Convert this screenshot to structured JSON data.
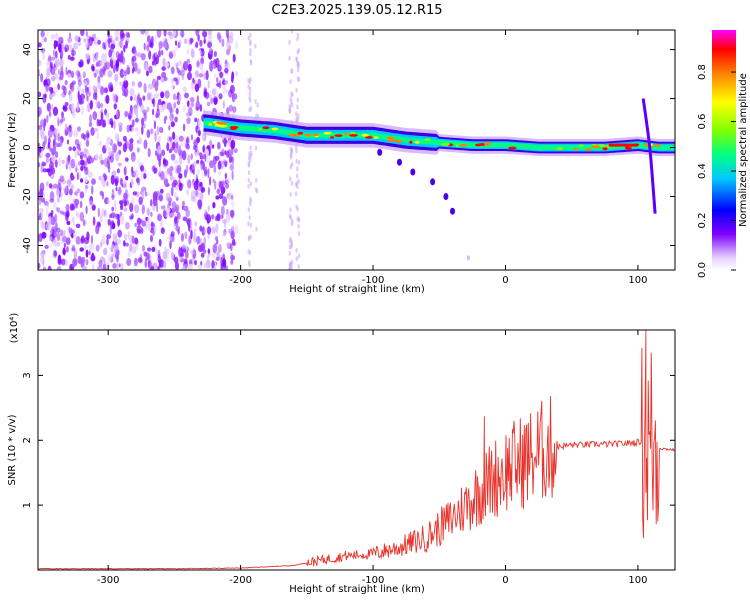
{
  "title": "C2E3.2025.139.05.12.R15",
  "chart_data": [
    {
      "type": "heatmap",
      "xlabel": "Height of straight line (km)",
      "ylabel": "Frequency (Hz)",
      "xlim": [
        -353,
        128
      ],
      "ylim": [
        -50,
        48
      ],
      "x_ticks": [
        "-300",
        "-200",
        "-100",
        "0",
        "100"
      ],
      "y_ticks": [
        "40",
        "20",
        "0",
        "-20",
        "-40"
      ],
      "colorbar_label": "Normalized spectral amplitude",
      "colorbar_ticks": [
        "0.0",
        "0.2",
        "0.4",
        "0.6",
        "0.8"
      ],
      "colorbar_range": [
        0,
        0.97
      ],
      "colormap": [
        "#ffffff",
        "#e6d2ff",
        "#7f00ff",
        "#0000ff",
        "#00c8ff",
        "#00ff80",
        "#80ff00",
        "#ffff00",
        "#ff8000",
        "#ff0000",
        "#ff00ff"
      ],
      "ridge": {
        "x": [
          -225,
          -200,
          -175,
          -150,
          -125,
          -100,
          -75,
          -50,
          -25,
          0,
          25,
          50,
          75,
          100,
          115,
          128
        ],
        "freq": [
          10,
          8,
          7,
          5,
          5,
          5,
          3,
          2,
          1,
          1,
          0,
          0,
          0,
          1,
          0,
          0
        ]
      }
    },
    {
      "type": "line",
      "xlabel": "Height of straight line (km)",
      "ylabel": "SNR (10 * v/v)",
      "y_multiplier": "(x10⁴)",
      "xlim": [
        -353,
        128
      ],
      "ylim": [
        0,
        3.7
      ],
      "x_ticks": [
        "-300",
        "-200",
        "-100",
        "0",
        "100"
      ],
      "y_ticks": [
        "1",
        "2",
        "3"
      ],
      "color": "#e8332b",
      "series": [
        {
          "x": [
            -353,
            -300,
            -250,
            -200,
            -180,
            -160,
            -140,
            -120,
            -100,
            -80,
            -60,
            -50,
            -40,
            -30,
            -20,
            -10,
            0,
            10,
            20,
            30,
            40,
            50,
            60,
            70,
            80,
            90,
            100,
            105,
            110,
            115,
            128
          ],
          "y": [
            0.02,
            0.02,
            0.02,
            0.03,
            0.05,
            0.07,
            0.15,
            0.22,
            0.25,
            0.35,
            0.5,
            0.65,
            0.8,
            1.0,
            1.2,
            1.4,
            1.55,
            1.65,
            1.75,
            1.85,
            1.9,
            1.93,
            1.93,
            1.94,
            1.94,
            1.95,
            1.97,
            2.0,
            1.9,
            1.88,
            1.85
          ]
        }
      ],
      "spikes": [
        {
          "x": -16,
          "y": 2.37
        },
        {
          "x": 106,
          "y": 3.7
        },
        {
          "x": 110,
          "y": 3.35
        }
      ]
    }
  ]
}
